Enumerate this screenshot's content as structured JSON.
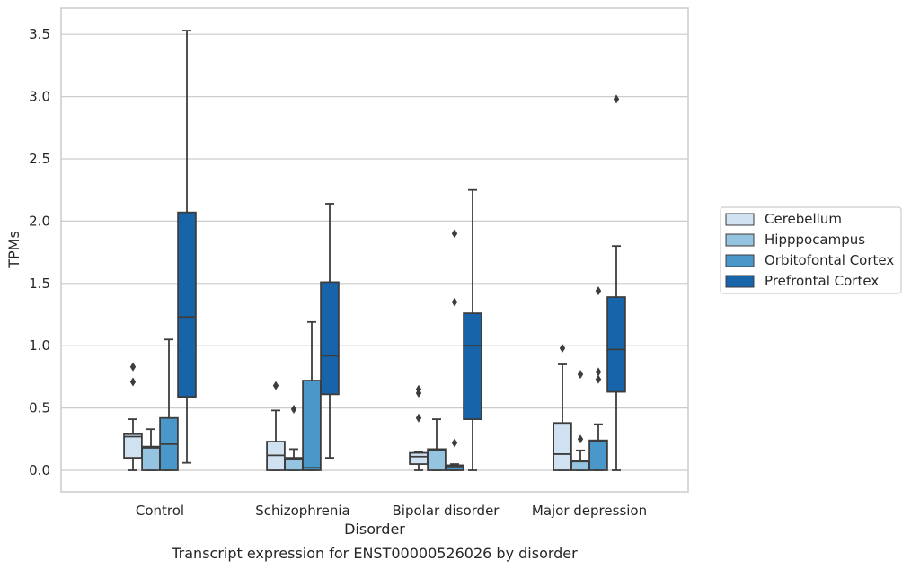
{
  "chart_data": {
    "type": "box",
    "caption": "Transcript expression for ENST00000526026 by disorder",
    "xlabel": "Disorder",
    "ylabel": "TPMs",
    "ylim": [
      -0.17,
      3.71
    ],
    "yticks": [
      0.0,
      0.5,
      1.0,
      1.5,
      2.0,
      2.5,
      3.0,
      3.5
    ],
    "ytick_labels": [
      "0.0",
      "0.5",
      "1.0",
      "1.5",
      "2.0",
      "2.5",
      "3.0",
      "3.5"
    ],
    "grid": true,
    "legend_position": "right",
    "categories": [
      "Control",
      "Schizophrenia",
      "Bipolar disorder",
      "Major depression"
    ],
    "series": [
      {
        "name": "Cerebellum",
        "color": "#d0e1f2",
        "boxes": [
          {
            "whislo": 0.0,
            "q1": 0.1,
            "med": 0.27,
            "q3": 0.29,
            "whishi": 0.41,
            "fliers": [
              0.71,
              0.83
            ]
          },
          {
            "whislo": 0.0,
            "q1": 0.0,
            "med": 0.12,
            "q3": 0.23,
            "whishi": 0.48,
            "fliers": [
              0.68
            ]
          },
          {
            "whislo": 0.0,
            "q1": 0.05,
            "med": 0.11,
            "q3": 0.14,
            "whishi": 0.15,
            "fliers": [
              0.42,
              0.62,
              0.65
            ]
          },
          {
            "whislo": 0.0,
            "q1": 0.0,
            "med": 0.13,
            "q3": 0.38,
            "whishi": 0.85,
            "fliers": [
              0.98
            ]
          }
        ]
      },
      {
        "name": "Hipppocampus",
        "color": "#94c4df",
        "boxes": [
          {
            "whislo": 0.0,
            "q1": 0.0,
            "med": 0.18,
            "q3": 0.19,
            "whishi": 0.33,
            "fliers": []
          },
          {
            "whislo": 0.0,
            "q1": 0.0,
            "med": 0.09,
            "q3": 0.1,
            "whishi": 0.17,
            "fliers": [
              0.49
            ]
          },
          {
            "whislo": 0.0,
            "q1": 0.0,
            "med": 0.16,
            "q3": 0.17,
            "whishi": 0.41,
            "fliers": []
          },
          {
            "whislo": 0.0,
            "q1": 0.0,
            "med": 0.07,
            "q3": 0.08,
            "whishi": 0.16,
            "fliers": [
              0.25,
              0.77
            ]
          }
        ]
      },
      {
        "name": "Orbitofontal Cortex",
        "color": "#4a98c9",
        "boxes": [
          {
            "whislo": 0.0,
            "q1": 0.0,
            "med": 0.21,
            "q3": 0.42,
            "whishi": 1.05,
            "fliers": []
          },
          {
            "whislo": 0.0,
            "q1": 0.0,
            "med": 0.02,
            "q3": 0.72,
            "whishi": 1.19,
            "fliers": []
          },
          {
            "whislo": 0.0,
            "q1": 0.0,
            "med": 0.03,
            "q3": 0.04,
            "whishi": 0.05,
            "fliers": [
              0.22,
              1.35,
              1.9
            ]
          },
          {
            "whislo": 0.0,
            "q1": 0.0,
            "med": 0.23,
            "q3": 0.24,
            "whishi": 0.37,
            "fliers": [
              0.73,
              0.79,
              1.44
            ]
          }
        ]
      },
      {
        "name": "Prefrontal Cortex",
        "color": "#1764ab",
        "boxes": [
          {
            "whislo": 0.06,
            "q1": 0.59,
            "med": 1.23,
            "q3": 2.07,
            "whishi": 3.53,
            "fliers": []
          },
          {
            "whislo": 0.1,
            "q1": 0.61,
            "med": 0.92,
            "q3": 1.51,
            "whishi": 2.14,
            "fliers": []
          },
          {
            "whislo": 0.0,
            "q1": 0.41,
            "med": 1.0,
            "q3": 1.26,
            "whishi": 2.25,
            "fliers": []
          },
          {
            "whislo": 0.0,
            "q1": 0.63,
            "med": 0.97,
            "q3": 1.39,
            "whishi": 1.8,
            "fliers": [
              2.98
            ]
          }
        ]
      }
    ]
  }
}
